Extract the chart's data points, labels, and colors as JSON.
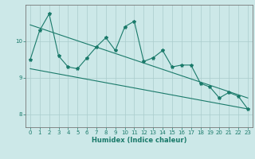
{
  "title": "",
  "xlabel": "Humidex (Indice chaleur)",
  "ylabel": "",
  "bg_color": "#cce8e8",
  "line_color": "#1a7a6a",
  "grid_color": "#aacccc",
  "xlim": [
    -0.5,
    23.5
  ],
  "ylim": [
    7.65,
    11.0
  ],
  "yticks": [
    8,
    9,
    10
  ],
  "xticks": [
    0,
    1,
    2,
    3,
    4,
    5,
    6,
    7,
    8,
    9,
    10,
    11,
    12,
    13,
    14,
    15,
    16,
    17,
    18,
    19,
    20,
    21,
    22,
    23
  ],
  "zigzag_x": [
    0,
    1,
    2,
    3,
    4,
    5,
    6,
    7,
    8,
    9,
    10,
    11,
    12,
    13,
    14,
    15,
    16,
    17,
    18,
    19,
    20,
    21,
    22,
    23
  ],
  "zigzag_y": [
    9.5,
    10.3,
    10.75,
    9.6,
    9.3,
    9.25,
    9.55,
    9.85,
    10.1,
    9.75,
    10.4,
    10.55,
    9.45,
    9.55,
    9.75,
    9.3,
    9.35,
    9.35,
    8.85,
    8.75,
    8.45,
    8.6,
    8.5,
    8.15
  ],
  "upper_trend_x": [
    0,
    23
  ],
  "upper_trend_y": [
    10.45,
    8.45
  ],
  "lower_trend_x": [
    0,
    23
  ],
  "lower_trend_y": [
    9.25,
    8.15
  ],
  "marker": "*",
  "marker_size": 3,
  "line_width": 0.8,
  "tick_fontsize": 5.0,
  "xlabel_fontsize": 6.0
}
